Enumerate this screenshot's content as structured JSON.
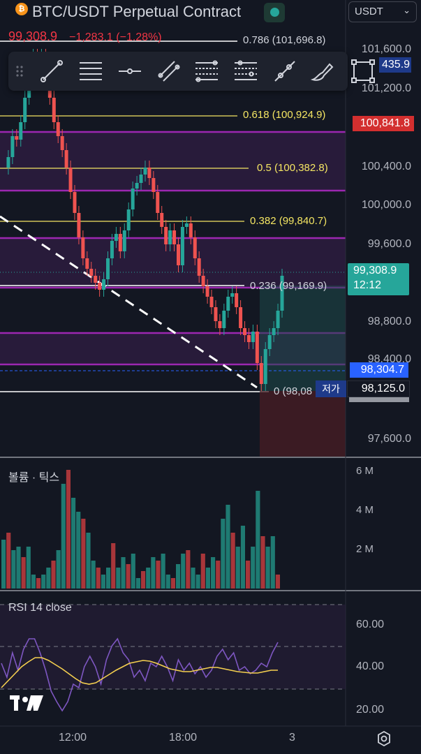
{
  "header": {
    "title": "BTC/USDT Perpetual Contract",
    "coin_symbol": "₿",
    "currency": "USDT"
  },
  "price": {
    "last": "99,308.9",
    "change": "−1,283.1 (−1.28%)"
  },
  "toolbar": {
    "tools": [
      "grip-icon",
      "trend-line-icon",
      "horizontal-lines-icon",
      "horizontal-ray-icon",
      "parallel-channel-icon",
      "fib-retracement-icon",
      "fib-extension-icon",
      "pitchfork-icon",
      "brush-icon",
      "rectangle-icon"
    ]
  },
  "price_axis": {
    "labels": [
      "101,600.0",
      "101,200.0",
      "100,400.0",
      "100,000.0",
      "99,600.0",
      "98,800.0",
      "98,400.0",
      "97,600.0"
    ],
    "tags": {
      "partial_top": "435.9",
      "red_tag": "100,841.8",
      "current": "99,308.9",
      "countdown": "12:12",
      "blue_tag": "98,304.7",
      "low": "98,125.0",
      "low_text": "저가"
    }
  },
  "fib": {
    "levels": [
      {
        "ratio": "0.786",
        "price": "101,696.8",
        "label": "0.786 (101,696.8)"
      },
      {
        "ratio": "0.618",
        "price": "100,924.9",
        "label": "0.618 (100,924.9)"
      },
      {
        "ratio": "0.5",
        "price": "100,382.8",
        "label": "0.5 (100,382.8)"
      },
      {
        "ratio": "0.382",
        "price": "99,840.7",
        "label": "0.382 (99,840.7)"
      },
      {
        "ratio": "0.236",
        "price": "99,169.9",
        "label": "0.236 (99,169.9)"
      },
      {
        "ratio": "0",
        "price": "98,08",
        "label": "0 (98,08"
      }
    ]
  },
  "volume_pane": {
    "title": "볼륨 · 틱스",
    "axis": [
      "6 M",
      "4 M",
      "2 M"
    ]
  },
  "rsi_pane": {
    "title": "RSI 14 close",
    "axis": [
      "60.00",
      "40.00",
      "20.00"
    ]
  },
  "time_axis": {
    "labels": [
      "12:00",
      "18:00",
      "3"
    ]
  },
  "colors": {
    "up": "#26a69a",
    "down": "#ef5350",
    "fib_gold": "#f5e663",
    "purple_band": "#9c27b0",
    "background": "#131722"
  },
  "watermark": "TradingView logo"
}
